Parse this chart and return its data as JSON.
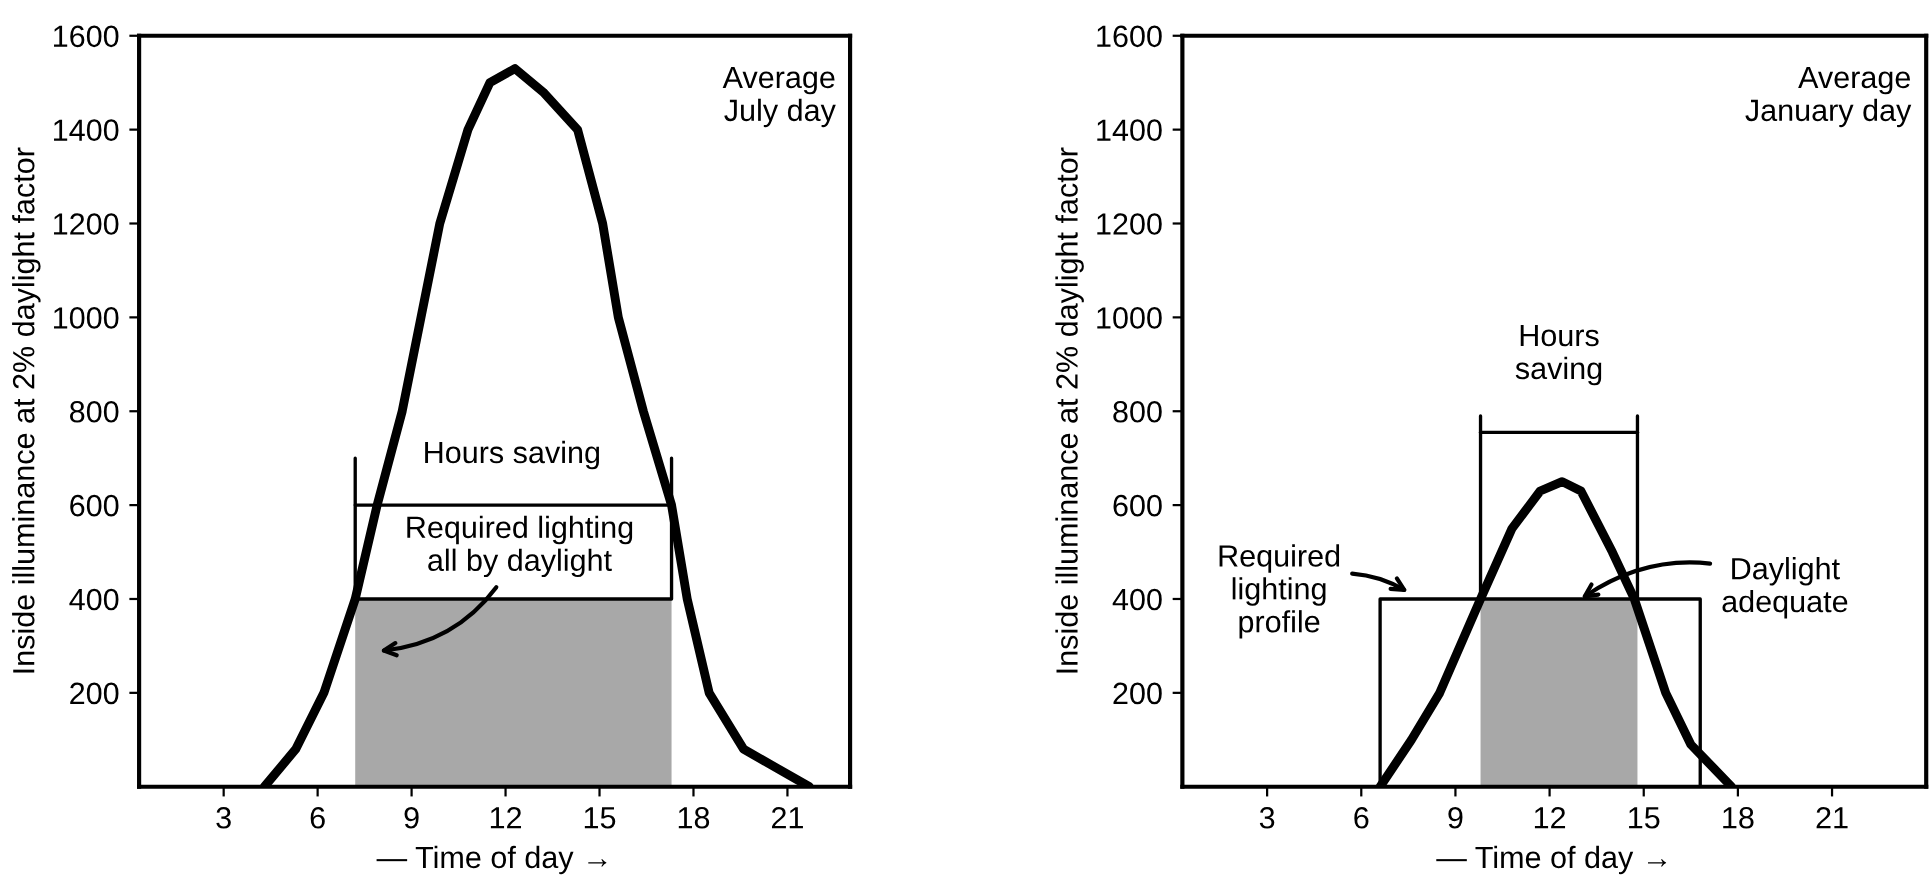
{
  "chart_data": [
    {
      "type": "line",
      "ylabel": "Inside illuminance at 2% daylight factor",
      "xlabel": "— Time of day →",
      "xlim": [
        0.3,
        23
      ],
      "ylim": [
        0,
        1600
      ],
      "xticks": [
        3,
        6,
        9,
        12,
        15,
        18,
        21
      ],
      "yticks": [
        200,
        400,
        600,
        800,
        1000,
        1200,
        1400,
        1600
      ],
      "grid": false,
      "legend": false,
      "marker": "none",
      "line_style": "solid",
      "series": [
        {
          "color": "#000000",
          "x": [
            4.3,
            5.3,
            6.2,
            7.2,
            7.9,
            8.7,
            9.3,
            9.9,
            10.8,
            11.5,
            12.3,
            13.2,
            14.3,
            15.1,
            15.6,
            16.4,
            17.3,
            17.8,
            18.5,
            19.6,
            21.7
          ],
          "values": [
            0,
            80,
            200,
            400,
            600,
            800,
            1000,
            1200,
            1400,
            1500,
            1530,
            1480,
            1400,
            1200,
            1000,
            800,
            600,
            400,
            200,
            80,
            0
          ]
        },
        {
          "type": "area",
          "color": "#a8a8a8",
          "x": [
            7.2,
            17.3
          ],
          "values": [
            400,
            400
          ]
        },
        {
          "color": "#000000",
          "x": [
            7.2,
            7.2,
            17.3,
            17.3
          ],
          "values": [
            700,
            400,
            400,
            700
          ]
        },
        {
          "color": "#000000",
          "x": [
            7.2,
            17.3
          ],
          "values": [
            600,
            600
          ]
        }
      ],
      "annotations": [
        "Average\nJuly day",
        {
          "text": "Hours saving",
          "x": 12.2,
          "y": 600
        },
        "Required lighting\nall by daylight"
      ]
    },
    {
      "type": "line",
      "ylabel": "Inside illuminance at 2% daylight factor",
      "xlabel": "— Time of day →",
      "xlim": [
        0.3,
        24
      ],
      "ylim": [
        0,
        1600
      ],
      "xticks": [
        3,
        6,
        9,
        12,
        15,
        18,
        21
      ],
      "yticks": [
        200,
        400,
        600,
        800,
        1000,
        1200,
        1400,
        1600
      ],
      "grid": false,
      "legend": false,
      "marker": "none",
      "line_style": "solid",
      "series": [
        {
          "type": "area",
          "color": "#a8a8a8",
          "x": [
            9.8,
            14.8
          ],
          "values": [
            400,
            400
          ]
        },
        {
          "color": "#000000",
          "x": [
            6.6,
            7.6,
            8.5,
            9.8,
            10.8,
            11.7,
            12.4,
            13.0,
            14.0,
            14.7,
            15.7,
            16.5,
            17.8
          ],
          "values": [
            0,
            100,
            200,
            400,
            550,
            630,
            650,
            630,
            500,
            400,
            200,
            90,
            0
          ]
        },
        {
          "color": "#000000",
          "x": [
            6.6,
            6.6,
            16.8,
            16.8
          ],
          "values": [
            0,
            400,
            400,
            0
          ]
        },
        {
          "color": "#000000",
          "x": [
            9.8,
            9.8
          ],
          "values": [
            400,
            790
          ]
        },
        {
          "color": "#000000",
          "x": [
            14.8,
            14.8
          ],
          "values": [
            400,
            790
          ]
        },
        {
          "color": "#000000",
          "x": [
            9.8,
            14.8
          ],
          "values": [
            755,
            755
          ]
        }
      ],
      "annotations": [
        "Average\nJanuary day",
        {
          "text": "Hours\nsaving",
          "x": 12.3,
          "y": 755
        },
        "Required\nlighting\nprofile",
        {
          "text": "Daylight\nadequate",
          "x": 13,
          "y": 400
        }
      ]
    }
  ]
}
